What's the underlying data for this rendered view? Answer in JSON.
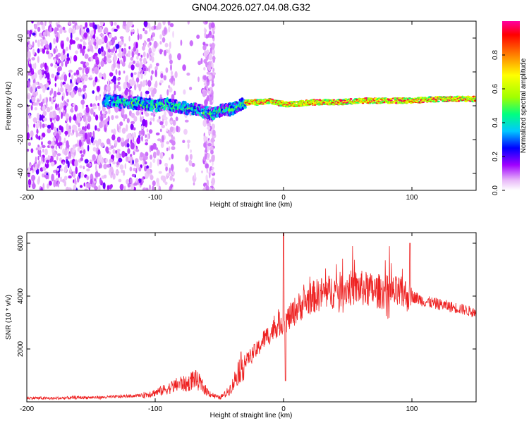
{
  "title": "GN04.2026.027.04.08.G32",
  "chart_data": [
    {
      "type": "heatmap",
      "name": "spectrogram",
      "xlabel": "Height of straight line (km)",
      "ylabel": "Frequency (Hz)",
      "xlim": [
        -200,
        150
      ],
      "ylim": [
        -50,
        50
      ],
      "xticks": [
        -200,
        -100,
        0,
        100
      ],
      "yticks": [
        -40,
        -20,
        0,
        20,
        40
      ],
      "xtick_labels": [
        "-200",
        "-100",
        "0",
        "100"
      ],
      "ytick_labels": [
        "-40",
        "-20",
        "0",
        "20",
        "40"
      ],
      "colorbar": {
        "label": "Normalized spectral amplitude",
        "range": [
          0,
          1
        ],
        "ticks": [
          0.0,
          0.2,
          0.4,
          0.6,
          0.8
        ],
        "tick_labels": [
          "0.0",
          "0.2",
          "0.4",
          "0.6",
          "0.8"
        ],
        "colors": [
          "#ffffff",
          "#e8b8f8",
          "#a000ff",
          "#0000ff",
          "#00c8ff",
          "#00ff80",
          "#a0ff00",
          "#ffff00",
          "#ff8000",
          "#ff0000",
          "#ff00a0"
        ]
      },
      "ridge": {
        "x": [
          -140,
          -120,
          -100,
          -90,
          -80,
          -70,
          -60,
          -55,
          -50,
          -40,
          -35,
          -30,
          -20,
          -10,
          -5,
          0,
          10,
          20,
          40,
          60,
          80,
          100,
          120,
          150
        ],
        "freq": [
          3,
          2,
          0,
          1,
          -1,
          -2,
          -4,
          -5,
          -3,
          -2,
          0,
          2,
          2,
          3,
          2,
          1,
          1,
          2,
          2,
          3,
          3,
          3,
          4,
          4
        ]
      }
    },
    {
      "type": "line",
      "name": "snr",
      "xlabel": "Height of straight line (km)",
      "ylabel": "SNR (10 * v/v)",
      "xlim": [
        -200,
        150
      ],
      "ylim": [
        0,
        6400
      ],
      "xticks": [
        -200,
        -100,
        0,
        100
      ],
      "yticks": [
        2000,
        4000,
        6000
      ],
      "xtick_labels": [
        "-200",
        "-100",
        "0",
        "100"
      ],
      "ytick_labels": [
        "2000",
        "4000",
        "6000"
      ],
      "color": "#ee2222",
      "series": [
        {
          "name": "SNR",
          "x": [
            -200,
            -180,
            -160,
            -140,
            -120,
            -110,
            -100,
            -90,
            -80,
            -75,
            -70,
            -65,
            -60,
            -55,
            -50,
            -45,
            -40,
            -35,
            -30,
            -25,
            -20,
            -15,
            -10,
            -5,
            0,
            5,
            10,
            20,
            30,
            40,
            50,
            60,
            70,
            80,
            90,
            100,
            110,
            120,
            130,
            140,
            150
          ],
          "values": [
            150,
            130,
            160,
            170,
            220,
            250,
            350,
            500,
            700,
            650,
            900,
            700,
            400,
            250,
            150,
            300,
            600,
            1200,
            1500,
            1800,
            2000,
            2400,
            2600,
            2900,
            3000,
            3200,
            3500,
            3900,
            4100,
            4200,
            4300,
            4300,
            4200,
            4150,
            4100,
            4000,
            3800,
            3700,
            3600,
            3500,
            3350
          ]
        }
      ]
    }
  ]
}
